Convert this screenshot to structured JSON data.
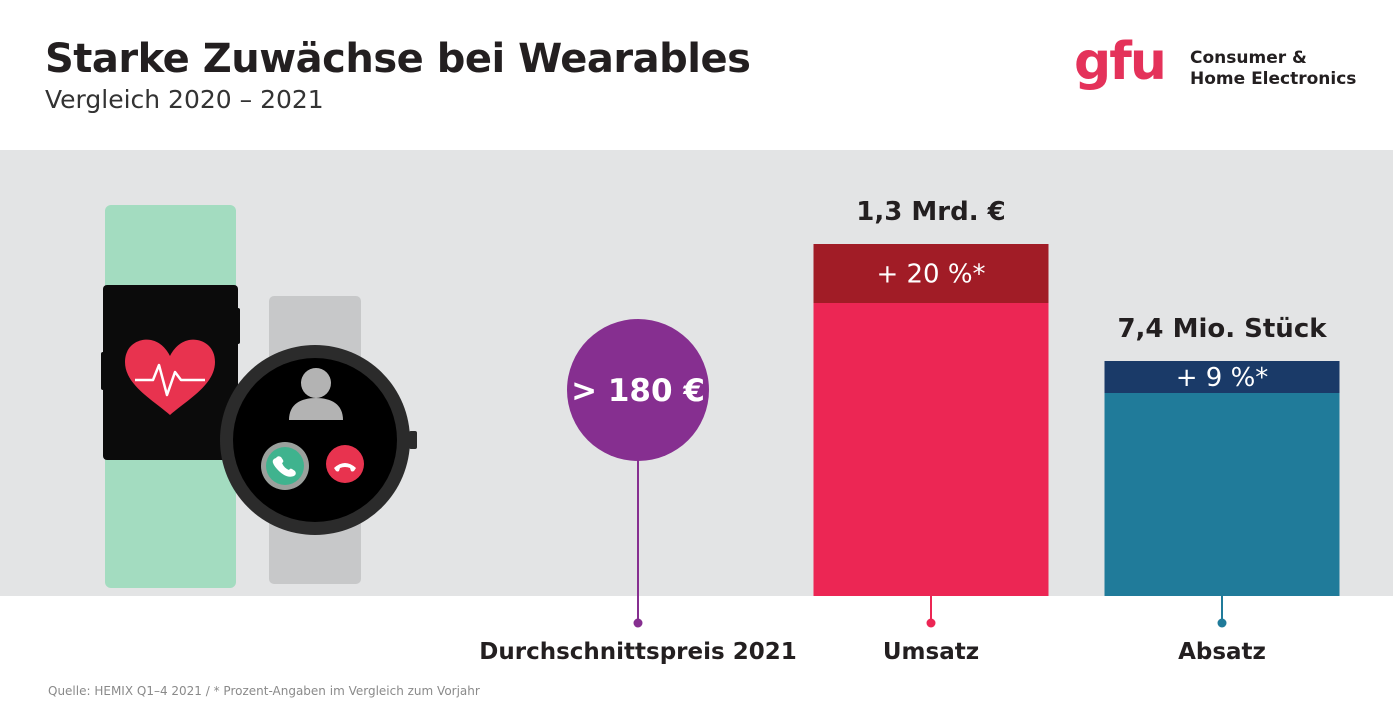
{
  "header": {
    "title": "Starke Zuwächse bei Wearables",
    "subtitle": "Vergleich 2020 – 2021"
  },
  "logo": {
    "mark": "gfu",
    "line1": "Consumer &",
    "line2": "Home Electronics"
  },
  "chart_data": {
    "type": "bar",
    "title": "Starke Zuwächse bei Wearables",
    "subtitle": "Vergleich 2020 – 2021",
    "categories": [
      "Durchschnittspreis 2021",
      "Umsatz",
      "Absatz"
    ],
    "items": [
      {
        "category": "Durchschnittspreis 2021",
        "value_label": "> 180 €",
        "shape": "circle",
        "color": "#862f90"
      },
      {
        "category": "Umsatz",
        "value_label": "1,3 Mrd. €",
        "value": 1.3,
        "growth_label": "+ 20 %*",
        "growth_pct": 20,
        "color": "#ec2654",
        "growth_color": "#a11c26"
      },
      {
        "category": "Absatz",
        "value_label": "7,4 Mio. Stück",
        "value": 7.4,
        "growth_label": "+ 9 %*",
        "growth_pct": 9,
        "color": "#207b9a",
        "growth_color": "#1a3a68"
      }
    ]
  },
  "footnote": "Quelle: HEMIX Q1–4 2021 / * Prozent-Angaben im Vergleich zum Vorjahr",
  "colors": {
    "background_band": "#e3e4e5",
    "accent": "#e4325a"
  }
}
